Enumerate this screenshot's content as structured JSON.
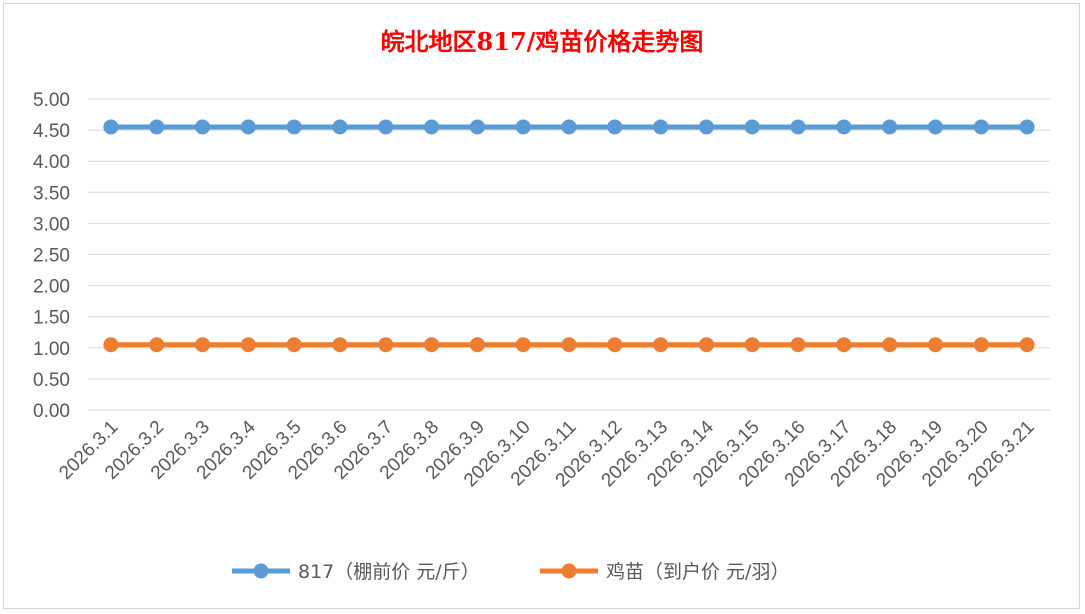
{
  "chart_data": {
    "type": "line",
    "title": "皖北地区817/鸡苗价格走势图",
    "title_color": "#ff0000",
    "xlabel": "",
    "ylabel": "",
    "categories": [
      "2026.3.1",
      "2026.3.2",
      "2026.3.3",
      "2026.3.4",
      "2026.3.5",
      "2026.3.6",
      "2026.3.7",
      "2026.3.8",
      "2026.3.9",
      "2026.3.10",
      "2026.3.11",
      "2026.3.12",
      "2026.3.13",
      "2026.3.14",
      "2026.3.15",
      "2026.3.16",
      "2026.3.17",
      "2026.3.18",
      "2026.3.19",
      "2026.3.20",
      "2026.3.21"
    ],
    "ylim": [
      0,
      5
    ],
    "yticks": [
      "0.00",
      "0.50",
      "1.00",
      "1.50",
      "2.00",
      "2.50",
      "3.00",
      "3.50",
      "4.00",
      "4.50",
      "5.00"
    ],
    "grid": true,
    "legend_position": "bottom",
    "series": [
      {
        "name": "817（棚前价 元/斤）",
        "color": "#5b9bd5",
        "values": [
          4.55,
          4.55,
          4.55,
          4.55,
          4.55,
          4.55,
          4.55,
          4.55,
          4.55,
          4.55,
          4.55,
          4.55,
          4.55,
          4.55,
          4.55,
          4.55,
          4.55,
          4.55,
          4.55,
          4.55,
          4.55
        ]
      },
      {
        "name": "鸡苗（到户价 元/羽）",
        "color": "#ed7d31",
        "values": [
          1.05,
          1.05,
          1.05,
          1.05,
          1.05,
          1.05,
          1.05,
          1.05,
          1.05,
          1.05,
          1.05,
          1.05,
          1.05,
          1.05,
          1.05,
          1.05,
          1.05,
          1.05,
          1.05,
          1.05,
          1.05
        ]
      }
    ]
  }
}
